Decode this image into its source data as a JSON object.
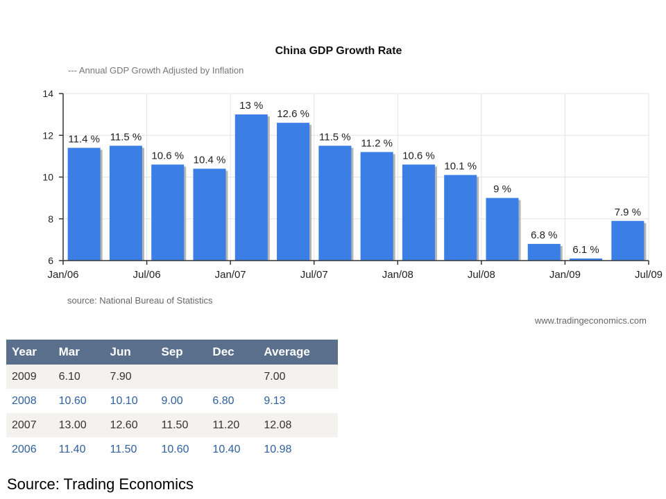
{
  "chart_data": {
    "type": "bar",
    "title": "China GDP Growth Rate",
    "legend_label": "--- Annual GDP Growth Adjusted by Inflation",
    "source_note": "source: National Bureau of Statistics",
    "website": "www.tradingeconomics.com",
    "series": [
      {
        "name": "Annual GDP Growth Adjusted by Inflation",
        "values": [
          11.4,
          11.5,
          10.6,
          10.4,
          13,
          12.6,
          11.5,
          11.2,
          10.6,
          10.1,
          9,
          6.8,
          6.1,
          7.9
        ],
        "labels": [
          "11.4 %",
          "11.5 %",
          "10.6 %",
          "10.4 %",
          "13 %",
          "12.6 %",
          "11.5 %",
          "11.2 %",
          "10.6 %",
          "10.1 %",
          "9 %",
          "6.8 %",
          "6.1 %",
          "7.9 %"
        ]
      }
    ],
    "x_tick_labels": [
      "Jan/06",
      "Jul/06",
      "Jan/07",
      "Jul/07",
      "Jan/08",
      "Jul/08",
      "Jan/09",
      "Jul/09"
    ],
    "ylim": [
      6,
      14
    ],
    "y_ticks": [
      6,
      8,
      10,
      12,
      14
    ],
    "grid": true,
    "colors": {
      "bar": "#3a7ee6",
      "shadow": "#b5b5b5",
      "axis": "#333333",
      "grid": "#e3e3e3"
    }
  },
  "table": {
    "headers": [
      "Year",
      "Mar",
      "Jun",
      "Sep",
      "Dec",
      "Average"
    ],
    "rows": [
      [
        "2009",
        "6.10",
        "7.90",
        "",
        "",
        "7.00"
      ],
      [
        "2008",
        "10.60",
        "10.10",
        "9.00",
        "6.80",
        "9.13"
      ],
      [
        "2007",
        "13.00",
        "12.60",
        "11.50",
        "11.20",
        "12.08"
      ],
      [
        "2006",
        "11.40",
        "11.50",
        "10.60",
        "10.40",
        "10.98"
      ]
    ],
    "header_color": "#5a6f8c"
  },
  "footer": {
    "source": "Source: Trading Economics"
  }
}
